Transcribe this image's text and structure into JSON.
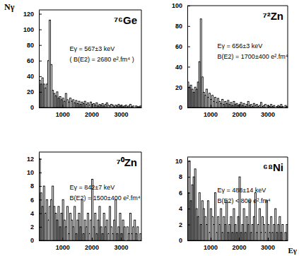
{
  "chart_data": [
    {
      "type": "histogram",
      "title": "⁷⁶Ge",
      "ylabel": "Nγ",
      "color": "#000000",
      "annotations": [
        "Eγ = 567±3 keV",
        "( B(E2) = 2680 e².fm⁴ )"
      ],
      "bins": [
        200,
        250,
        300,
        350,
        400,
        450,
        500,
        550,
        600,
        650,
        700,
        750,
        800,
        850,
        900,
        950,
        1000,
        1050,
        1100,
        1150,
        1200,
        1250,
        1300,
        1350,
        1400,
        1450,
        1500,
        1550,
        1600,
        1650,
        1700,
        1750,
        1800,
        1850,
        1900,
        1950,
        2000,
        2050,
        2100,
        2150,
        2200,
        2250,
        2300,
        2350,
        2400,
        2450,
        2500,
        2550,
        2600,
        2650,
        2700,
        2750,
        2800,
        2850,
        2900,
        2950,
        3000,
        3050,
        3100,
        3150,
        3200,
        3250,
        3300,
        3350,
        3400,
        3450,
        3500,
        3550,
        3600,
        3650,
        3700
      ],
      "values": [
        35,
        30,
        38,
        30,
        25,
        30,
        60,
        112,
        55,
        22,
        18,
        15,
        20,
        12,
        14,
        10,
        12,
        8,
        18,
        10,
        7,
        12,
        8,
        10,
        6,
        9,
        5,
        8,
        4,
        7,
        5,
        8,
        4,
        6,
        3,
        7,
        4,
        5,
        3,
        6,
        2,
        4,
        3,
        5,
        2,
        4,
        6,
        3,
        2,
        4,
        3,
        1,
        3,
        2,
        4,
        2,
        3,
        1,
        2,
        3,
        1,
        2,
        4,
        1,
        2,
        0,
        2,
        1,
        1,
        2
      ],
      "xlim": [
        200,
        3700
      ],
      "xticks": [
        1000,
        2000,
        3000
      ],
      "ylim": [
        0,
        125
      ],
      "yticks": [
        0,
        20,
        40,
        60,
        80,
        100,
        120
      ]
    },
    {
      "type": "histogram",
      "title": "⁷²Zn",
      "color": "#000000",
      "annotations": [
        "Eγ = 656±3 keV",
        "B(E2) = 1700±400 e².fm⁴"
      ],
      "bins": [
        200,
        250,
        300,
        350,
        400,
        450,
        500,
        550,
        600,
        650,
        700,
        750,
        800,
        850,
        900,
        950,
        1000,
        1050,
        1100,
        1150,
        1200,
        1250,
        1300,
        1350,
        1400,
        1450,
        1500,
        1550,
        1600,
        1650,
        1700,
        1750,
        1800,
        1850,
        1900,
        1950,
        2000,
        2050,
        2100,
        2150,
        2200,
        2250,
        2300,
        2350,
        2400,
        2450,
        2500,
        2550,
        2600,
        2650,
        2700,
        2750,
        2800,
        2850,
        2900,
        2950,
        3000,
        3050,
        3100,
        3150,
        3200,
        3250,
        3300,
        3350,
        3400,
        3450,
        3500,
        3550,
        3600,
        3650,
        3700
      ],
      "values": [
        25,
        20,
        22,
        18,
        15,
        20,
        18,
        25,
        45,
        87,
        30,
        15,
        12,
        18,
        10,
        14,
        8,
        12,
        6,
        10,
        5,
        9,
        6,
        4,
        8,
        3,
        6,
        4,
        7,
        3,
        5,
        2,
        6,
        3,
        4,
        2,
        3,
        5,
        2,
        4,
        1,
        3,
        6,
        2,
        3,
        1,
        4,
        2,
        3,
        1,
        2,
        5,
        1,
        2,
        3,
        0,
        2,
        1,
        3,
        1,
        2,
        0,
        1,
        2,
        1,
        3,
        1,
        0,
        2,
        1
      ],
      "xlim": [
        200,
        3700
      ],
      "xticks": [
        1000,
        2000,
        3000
      ],
      "ylim": [
        0,
        100
      ],
      "yticks": [
        0,
        20,
        40,
        60,
        80,
        100
      ]
    },
    {
      "type": "histogram",
      "title": "⁷⁰Zn",
      "color": "#000000",
      "annotations": [
        "Eγ = 842±7 keV",
        "B(E2) = 1500±400 e².fm⁴"
      ],
      "bins": [
        200,
        250,
        300,
        350,
        400,
        450,
        500,
        550,
        600,
        650,
        700,
        750,
        800,
        850,
        900,
        950,
        1000,
        1050,
        1100,
        1150,
        1200,
        1250,
        1300,
        1350,
        1400,
        1450,
        1500,
        1550,
        1600,
        1650,
        1700,
        1750,
        1800,
        1850,
        1900,
        1950,
        2000,
        2050,
        2100,
        2150,
        2200,
        2250,
        2300,
        2350,
        2400,
        2450,
        2500,
        2550,
        2600,
        2650,
        2700,
        2750,
        2800,
        2850,
        2900,
        2950,
        3000,
        3050,
        3100,
        3150,
        3200,
        3250,
        3300,
        3350,
        3400,
        3450,
        3500,
        3550,
        3600,
        3650,
        3700
      ],
      "values": [
        12,
        7,
        5,
        8,
        4,
        6,
        3,
        5,
        6,
        8,
        5,
        4,
        3,
        5,
        2,
        4,
        6,
        3,
        2,
        5,
        1,
        4,
        3,
        2,
        5,
        1,
        3,
        4,
        2,
        6,
        1,
        3,
        2,
        4,
        1,
        3,
        9,
        2,
        4,
        1,
        3,
        5,
        2,
        1,
        4,
        2,
        3,
        1,
        5,
        2,
        1,
        3,
        6,
        1,
        2,
        4,
        1,
        3,
        2,
        0,
        2,
        1,
        4,
        1,
        2,
        3,
        1,
        2,
        0,
        1
      ],
      "xlim": [
        200,
        3700
      ],
      "xticks": [
        1000,
        2000,
        3000
      ],
      "ylim": [
        0,
        13
      ],
      "yticks": [
        0,
        2,
        4,
        6,
        8,
        10,
        12
      ]
    },
    {
      "type": "histogram",
      "title": "⁶⁸Ni",
      "xlabel": "Eγ",
      "color": "#000000",
      "annotations": [
        "Eγ = 488±14 keV",
        "B(E2) < 800 e².fm⁴"
      ],
      "bins": [
        200,
        250,
        300,
        350,
        400,
        450,
        500,
        550,
        600,
        650,
        700,
        750,
        800,
        850,
        900,
        950,
        1000,
        1050,
        1100,
        1150,
        1200,
        1250,
        1300,
        1350,
        1400,
        1450,
        1500,
        1550,
        1600,
        1650,
        1700,
        1750,
        1800,
        1850,
        1900,
        1950,
        2000,
        2050,
        2100,
        2150,
        2200,
        2250,
        2300,
        2350,
        2400,
        2450,
        2500,
        2550,
        2600,
        2650,
        2700,
        2750,
        2800,
        2850,
        2900,
        2950,
        3000,
        3050,
        3100,
        3150,
        3200,
        3250,
        3300,
        3350,
        3400,
        3450,
        3500,
        3550,
        3600,
        3650,
        3700
      ],
      "values": [
        6,
        10,
        5,
        7,
        8,
        9,
        4,
        3,
        6,
        2,
        5,
        4,
        3,
        2,
        5,
        1,
        4,
        3,
        2,
        6,
        1,
        3,
        2,
        4,
        1,
        3,
        2,
        5,
        1,
        2,
        3,
        1,
        4,
        2,
        1,
        3,
        8,
        1,
        2,
        4,
        1,
        3,
        2,
        5,
        1,
        2,
        3,
        6,
        1,
        2,
        4,
        1,
        3,
        2,
        1,
        5,
        2,
        1,
        3,
        1,
        2,
        4,
        1,
        2,
        3,
        1,
        2,
        0,
        1,
        2
      ],
      "xlim": [
        200,
        3700
      ],
      "xticks": [
        1000,
        2000,
        3000
      ],
      "ylim": [
        0,
        10.5
      ],
      "yticks": [
        0,
        2,
        4,
        6,
        8,
        10
      ]
    }
  ]
}
